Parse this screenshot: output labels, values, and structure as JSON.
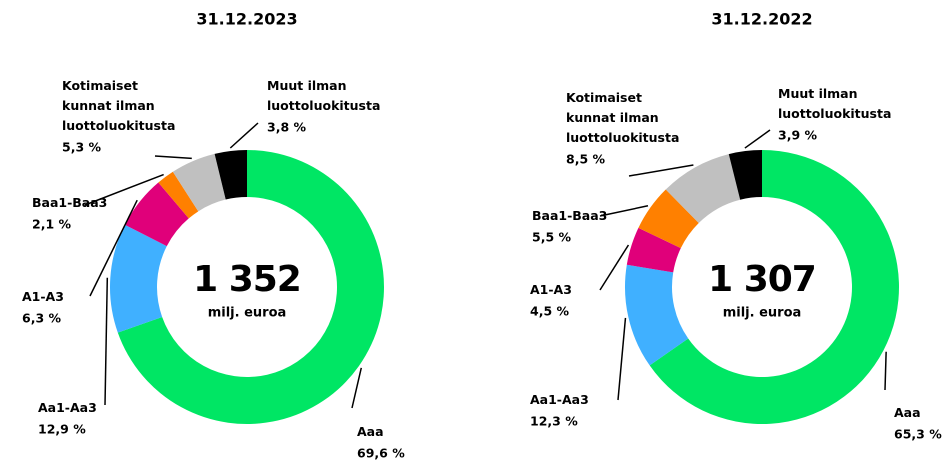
{
  "chart_data": [
    {
      "type": "pie",
      "donut": true,
      "title": "31.12.2023",
      "center_value": "1 352",
      "center_label": "milj. euroa",
      "categories": [
        "Aaa",
        "Aa1-Aa3",
        "A1-A3",
        "Baa1-Baa3",
        "Kotimaiset kunnat ilman luottoluokitusta",
        "Muut ilman luottoluokitusta"
      ],
      "values": [
        69.6,
        12.9,
        6.3,
        2.1,
        5.3,
        3.8
      ],
      "value_labels": [
        "69,6 %",
        "12,9 %",
        "6,3 %",
        "2,1 %",
        "5,3 %",
        "3,8 %"
      ],
      "colors": [
        "#00e664",
        "#40b0ff",
        "#e0007a",
        "#ff8000",
        "#c0c0c0",
        "#000000"
      ]
    },
    {
      "type": "pie",
      "donut": true,
      "title": "31.12.2022",
      "center_value": "1 307",
      "center_label": "milj. euroa",
      "categories": [
        "Aaa",
        "Aa1-Aa3",
        "A1-A3",
        "Baa1-Baa3",
        "Kotimaiset kunnat ilman luottoluokitusta",
        "Muut ilman luottoluokitusta"
      ],
      "values": [
        65.3,
        12.3,
        4.5,
        5.5,
        8.5,
        3.9
      ],
      "value_labels": [
        "65,3 %",
        "12,3 %",
        "4,5 %",
        "5,5 %",
        "8,5 %",
        "3,9 %"
      ],
      "colors": [
        "#00e664",
        "#40b0ff",
        "#e0007a",
        "#ff8000",
        "#c0c0c0",
        "#000000"
      ]
    }
  ]
}
